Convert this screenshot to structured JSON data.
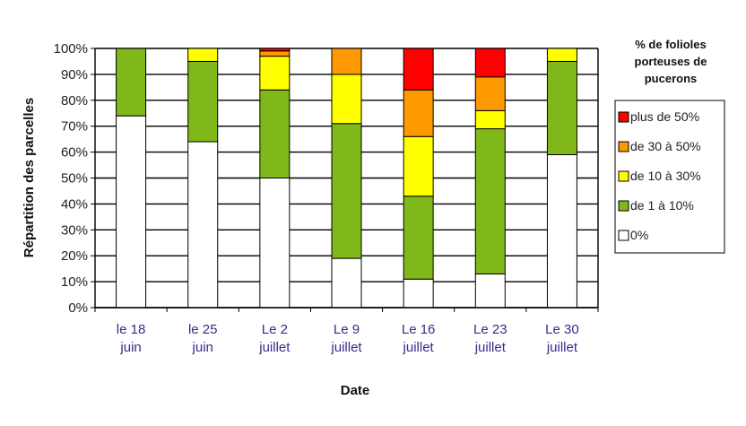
{
  "chart_data": {
    "type": "bar",
    "stacked": true,
    "ylabel": "Répartition des parcelles",
    "xlabel": "Date",
    "ylim": [
      0,
      100
    ],
    "yticks": [
      "0%",
      "10%",
      "20%",
      "30%",
      "40%",
      "50%",
      "60%",
      "70%",
      "80%",
      "90%",
      "100%"
    ],
    "grid": true,
    "categories": [
      [
        "le 18",
        "juin"
      ],
      [
        "le 25",
        "juin"
      ],
      [
        "Le 2",
        "juillet"
      ],
      [
        "Le 9",
        "juillet"
      ],
      [
        "Le 16",
        "juillet"
      ],
      [
        "Le 23",
        "juillet"
      ],
      [
        "Le 30",
        "juillet"
      ]
    ],
    "legend": {
      "title": [
        "% de folioles",
        "porteuses de",
        "pucerons"
      ],
      "position": "right"
    },
    "series": [
      {
        "name": "0%",
        "color": "#ffffff",
        "values": [
          74,
          64,
          50,
          19,
          11,
          13,
          59
        ]
      },
      {
        "name": "de 1 à 10%",
        "color": "#80b81a",
        "values": [
          26,
          31,
          34,
          52,
          32,
          56,
          36
        ]
      },
      {
        "name": "de 10 à 30%",
        "color": "#ffff00",
        "values": [
          0,
          5,
          13,
          19,
          23,
          7,
          5
        ]
      },
      {
        "name": "de 30 à 50%",
        "color": "#ff9900",
        "values": [
          0,
          0,
          2,
          10,
          18,
          13,
          0
        ]
      },
      {
        "name": "plus de 50%",
        "color": "#ff0000",
        "values": [
          0,
          0,
          1,
          0,
          16,
          11,
          0
        ]
      }
    ]
  }
}
